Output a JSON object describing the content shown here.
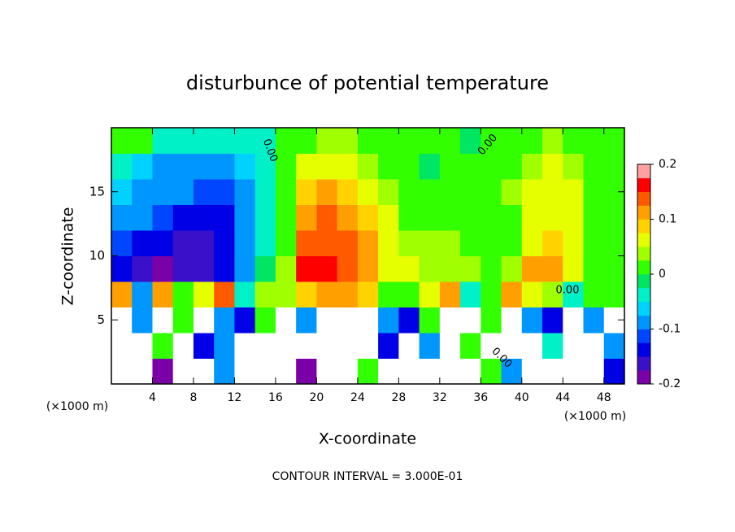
{
  "chart_data": {
    "type": "heatmap",
    "title": "disturbunce of potential temperature",
    "xlabel": "X-coordinate",
    "ylabel": "Z-coordinate",
    "x_unit": "(×1000 m)",
    "annotation": "CONTOUR INTERVAL = 3.000E-01",
    "contour_labels": [
      "0.00",
      "0.00",
      "0.00",
      "0.00"
    ],
    "xlim": [
      0,
      50
    ],
    "xticks": [
      4,
      8,
      12,
      16,
      20,
      24,
      28,
      32,
      36,
      40,
      44,
      48
    ],
    "ylim": [
      0,
      20
    ],
    "yticks": [
      5,
      10,
      15
    ],
    "zlim": [
      -0.2,
      0.2
    ],
    "zticks": [
      0.2,
      0.1,
      0,
      -0.1,
      -0.2
    ],
    "colors": [
      "#7a00a8",
      "#3a10c8",
      "#0000e6",
      "#0046ff",
      "#0096ff",
      "#00d2ff",
      "#00f0c8",
      "#00e664",
      "#32ff00",
      "#a0ff00",
      "#e6ff00",
      "#ffd200",
      "#ffa000",
      "#ff5a00",
      "#ff0000",
      "#ffa0a0"
    ],
    "over_color": "#ffffff",
    "x": [
      1,
      3,
      5,
      7,
      9,
      11,
      13,
      15,
      17,
      19,
      21,
      23,
      25,
      27,
      29,
      31,
      33,
      35,
      37,
      39,
      41,
      43,
      45,
      47,
      49
    ],
    "z": [
      1,
      3,
      5,
      7,
      9,
      11,
      13,
      15,
      17,
      19
    ],
    "values": [
      [
        0.2,
        0.2,
        -0.2,
        0.2,
        0.2,
        -0.1,
        0.2,
        0.2,
        0.2,
        -0.2,
        0.2,
        0.2,
        0.0,
        0.2,
        0.2,
        0.2,
        0.2,
        0.2,
        0.0,
        -0.1,
        0.2,
        0.2,
        0.2,
        0.2,
        -0.15
      ],
      [
        0.2,
        0.2,
        0.0,
        0.2,
        -0.15,
        -0.1,
        0.2,
        0.2,
        0.2,
        0.2,
        0.2,
        0.2,
        0.2,
        -0.15,
        0.2,
        -0.1,
        0.2,
        0.0,
        0.2,
        0.2,
        0.2,
        -0.05,
        0.2,
        0.2,
        -0.1
      ],
      [
        0.2,
        -0.1,
        0.2,
        0.0,
        0.2,
        -0.1,
        -0.15,
        0.0,
        0.2,
        -0.1,
        0.2,
        0.2,
        0.2,
        -0.1,
        -0.15,
        0.0,
        0.2,
        0.2,
        0.0,
        0.2,
        -0.1,
        -0.15,
        0.2,
        -0.1,
        0.2
      ],
      [
        0.1,
        -0.1,
        0.1,
        0.02,
        0.05,
        0.15,
        -0.05,
        0.03,
        0.04,
        0.08,
        0.12,
        0.1,
        0.08,
        0.02,
        0.0,
        0.05,
        0.1,
        -0.03,
        0.0,
        0.1,
        0.05,
        0.03,
        -0.05,
        0.0,
        0.02
      ],
      [
        -0.14,
        -0.16,
        -0.18,
        -0.17,
        -0.16,
        -0.14,
        -0.08,
        -0.02,
        0.03,
        0.16,
        0.17,
        0.15,
        0.11,
        0.07,
        0.05,
        0.04,
        0.04,
        0.03,
        0.01,
        0.03,
        0.1,
        0.1,
        0.05,
        0.02,
        0.0
      ],
      [
        -0.12,
        -0.13,
        -0.15,
        -0.16,
        -0.16,
        -0.15,
        -0.1,
        -0.03,
        0.02,
        0.15,
        0.15,
        0.13,
        0.1,
        0.06,
        0.04,
        0.03,
        0.03,
        0.02,
        0.0,
        0.02,
        0.07,
        0.08,
        0.05,
        0.02,
        0.0
      ],
      [
        -0.09,
        -0.1,
        -0.12,
        -0.14,
        -0.14,
        -0.14,
        -0.1,
        -0.04,
        0.02,
        0.12,
        0.14,
        0.12,
        0.08,
        0.05,
        0.02,
        0.01,
        0.02,
        0.02,
        0.0,
        0.02,
        0.06,
        0.07,
        0.05,
        0.02,
        0.0
      ],
      [
        -0.06,
        -0.08,
        -0.08,
        -0.1,
        -0.12,
        -0.12,
        -0.1,
        -0.05,
        0.02,
        0.08,
        0.1,
        0.09,
        0.06,
        0.03,
        0.01,
        0.0,
        0.01,
        0.02,
        0.02,
        0.03,
        0.05,
        0.06,
        0.05,
        0.02,
        0.0
      ],
      [
        -0.04,
        -0.06,
        -0.08,
        -0.1,
        -0.1,
        -0.08,
        -0.06,
        -0.03,
        0.02,
        0.06,
        0.07,
        0.06,
        0.04,
        0.01,
        0.0,
        -0.01,
        0.0,
        0.0,
        0.01,
        0.02,
        0.04,
        0.05,
        0.04,
        0.02,
        0.0
      ],
      [
        0.0,
        0.0,
        -0.05,
        -0.05,
        -0.05,
        -0.05,
        -0.05,
        -0.03,
        0.0,
        0.02,
        0.03,
        0.03,
        0.02,
        0.0,
        0.0,
        0.01,
        0.0,
        -0.01,
        0.0,
        0.01,
        0.02,
        0.03,
        0.02,
        0.01,
        0.0
      ]
    ]
  }
}
